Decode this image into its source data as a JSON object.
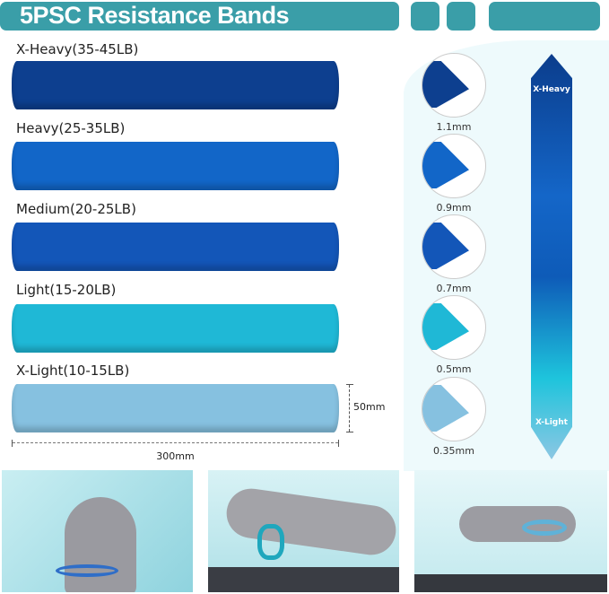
{
  "header": {
    "title": "5PSC Resistance Bands"
  },
  "bands": [
    {
      "label": "X-Heavy(35-45LB)",
      "color": "#0d3f8f",
      "thickness": "1.1mm"
    },
    {
      "label": "Heavy(25-35LB)",
      "color": "#1266c8",
      "thickness": "0.9mm"
    },
    {
      "label": "Medium(20-25LB)",
      "color": "#1356b8",
      "thickness": "0.7mm"
    },
    {
      "label": "Light(15-20LB)",
      "color": "#1fb8d6",
      "thickness": "0.5mm"
    },
    {
      "label": "X-Light(10-15LB)",
      "color": "#86c1e0",
      "thickness": "0.35mm"
    }
  ],
  "dimensions": {
    "width": "300mm",
    "height": "50mm"
  },
  "scale": {
    "top": "X-Heavy",
    "bottom": "X-Light"
  },
  "accent": "#3a9ea8"
}
